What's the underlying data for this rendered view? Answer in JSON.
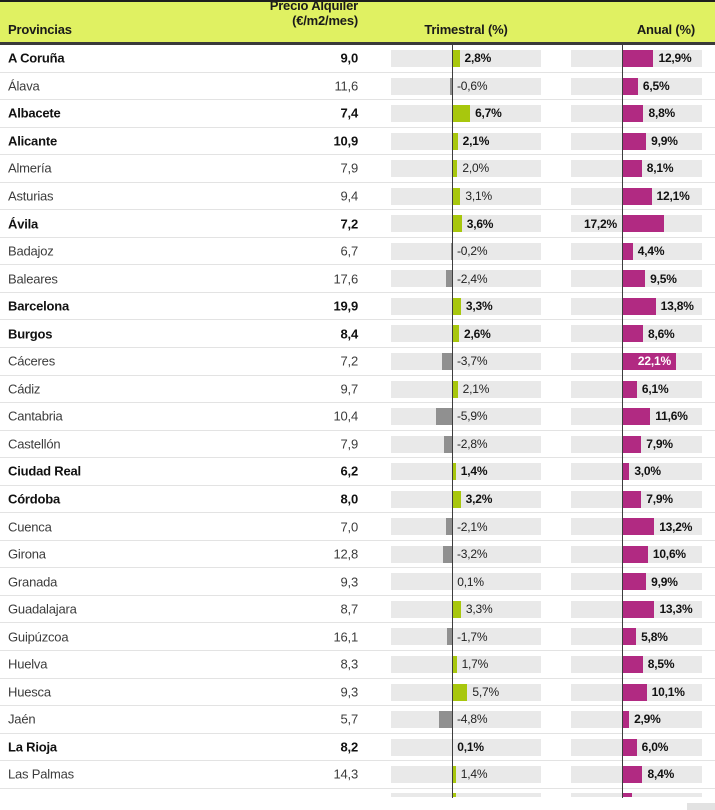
{
  "header": {
    "provincias": "Provincias",
    "precio_line1": "Precio Alquiler",
    "precio_line2": "(€/m2/mes)",
    "trimestral": "Trimestral (%)",
    "anual": "Anual (%)"
  },
  "colors": {
    "header_bg": "#e0f162",
    "positive_quarter_bar": "#a8c70d",
    "negative_quarter_bar": "#909090",
    "annual_bar": "#b12a82",
    "bar_track": "#e9e9e9",
    "axis_line": "#3d3d3d"
  },
  "rows": [
    {
      "name": "A Coruña",
      "bold": true,
      "price": "9,0",
      "trimestral": 2.8,
      "trimestral_label": "2,8%",
      "anual": 12.9,
      "anual_label": "12,9%",
      "anual_label_pos": "right"
    },
    {
      "name": "Álava",
      "bold": false,
      "price": "11,6",
      "trimestral": -0.6,
      "trimestral_label": "-0,6%",
      "anual": 6.5,
      "anual_label": "6,5%",
      "anual_label_pos": "right"
    },
    {
      "name": "Albacete",
      "bold": true,
      "price": "7,4",
      "trimestral": 6.7,
      "trimestral_label": "6,7%",
      "anual": 8.8,
      "anual_label": "8,8%",
      "anual_label_pos": "right"
    },
    {
      "name": "Alicante",
      "bold": true,
      "price": "10,9",
      "trimestral": 2.1,
      "trimestral_label": "2,1%",
      "anual": 9.9,
      "anual_label": "9,9%",
      "anual_label_pos": "right"
    },
    {
      "name": "Almería",
      "bold": false,
      "price": "7,9",
      "trimestral": 2.0,
      "trimestral_label": "2,0%",
      "anual": 8.1,
      "anual_label": "8,1%",
      "anual_label_pos": "right"
    },
    {
      "name": "Asturias",
      "bold": false,
      "price": "9,4",
      "trimestral": 3.1,
      "trimestral_label": "3,1%",
      "anual": 12.1,
      "anual_label": "12,1%",
      "anual_label_pos": "right"
    },
    {
      "name": "Ávila",
      "bold": true,
      "price": "7,2",
      "trimestral": 3.6,
      "trimestral_label": "3,6%",
      "anual": 17.2,
      "anual_label": "17,2%",
      "anual_label_pos": "left"
    },
    {
      "name": "Badajoz",
      "bold": false,
      "price": "6,7",
      "trimestral": -0.2,
      "trimestral_label": "-0,2%",
      "anual": 4.4,
      "anual_label": "4,4%",
      "anual_label_pos": "right"
    },
    {
      "name": "Baleares",
      "bold": false,
      "price": "17,6",
      "trimestral": -2.4,
      "trimestral_label": "-2,4%",
      "anual": 9.5,
      "anual_label": "9,5%",
      "anual_label_pos": "right"
    },
    {
      "name": "Barcelona",
      "bold": true,
      "price": "19,9",
      "trimestral": 3.3,
      "trimestral_label": "3,3%",
      "anual": 13.8,
      "anual_label": "13,8%",
      "anual_label_pos": "right"
    },
    {
      "name": "Burgos",
      "bold": true,
      "price": "8,4",
      "trimestral": 2.6,
      "trimestral_label": "2,6%",
      "anual": 8.6,
      "anual_label": "8,6%",
      "anual_label_pos": "right"
    },
    {
      "name": "Cáceres",
      "bold": false,
      "price": "7,2",
      "trimestral": -3.7,
      "trimestral_label": "-3,7%",
      "anual": 22.1,
      "anual_label": "22,1%",
      "anual_label_pos": "inside"
    },
    {
      "name": "Cádiz",
      "bold": false,
      "price": "9,7",
      "trimestral": 2.1,
      "trimestral_label": "2,1%",
      "anual": 6.1,
      "anual_label": "6,1%",
      "anual_label_pos": "right"
    },
    {
      "name": "Cantabria",
      "bold": false,
      "price": "10,4",
      "trimestral": -5.9,
      "trimestral_label": "-5,9%",
      "anual": 11.6,
      "anual_label": "11,6%",
      "anual_label_pos": "right"
    },
    {
      "name": "Castellón",
      "bold": false,
      "price": "7,9",
      "trimestral": -2.8,
      "trimestral_label": "-2,8%",
      "anual": 7.9,
      "anual_label": "7,9%",
      "anual_label_pos": "right"
    },
    {
      "name": "Ciudad Real",
      "bold": true,
      "price": "6,2",
      "trimestral": 1.4,
      "trimestral_label": "1,4%",
      "anual": 3.0,
      "anual_label": "3,0%",
      "anual_label_pos": "right"
    },
    {
      "name": "Córdoba",
      "bold": true,
      "price": "8,0",
      "trimestral": 3.2,
      "trimestral_label": "3,2%",
      "anual": 7.9,
      "anual_label": "7,9%",
      "anual_label_pos": "right"
    },
    {
      "name": "Cuenca",
      "bold": false,
      "price": "7,0",
      "trimestral": -2.1,
      "trimestral_label": "-2,1%",
      "anual": 13.2,
      "anual_label": "13,2%",
      "anual_label_pos": "right"
    },
    {
      "name": "Girona",
      "bold": false,
      "price": "12,8",
      "trimestral": -3.2,
      "trimestral_label": "-3,2%",
      "anual": 10.6,
      "anual_label": "10,6%",
      "anual_label_pos": "right"
    },
    {
      "name": "Granada",
      "bold": false,
      "price": "9,3",
      "trimestral": 0.1,
      "trimestral_label": "0,1%",
      "anual": 9.9,
      "anual_label": "9,9%",
      "anual_label_pos": "right"
    },
    {
      "name": "Guadalajara",
      "bold": false,
      "price": "8,7",
      "trimestral": 3.3,
      "trimestral_label": "3,3%",
      "anual": 13.3,
      "anual_label": "13,3%",
      "anual_label_pos": "right"
    },
    {
      "name": "Guipúzcoa",
      "bold": false,
      "price": "16,1",
      "trimestral": -1.7,
      "trimestral_label": "-1,7%",
      "anual": 5.8,
      "anual_label": "5,8%",
      "anual_label_pos": "right"
    },
    {
      "name": "Huelva",
      "bold": false,
      "price": "8,3",
      "trimestral": 1.7,
      "trimestral_label": "1,7%",
      "anual": 8.5,
      "anual_label": "8,5%",
      "anual_label_pos": "right"
    },
    {
      "name": "Huesca",
      "bold": false,
      "price": "9,3",
      "trimestral": 5.7,
      "trimestral_label": "5,7%",
      "anual": 10.1,
      "anual_label": "10,1%",
      "anual_label_pos": "right"
    },
    {
      "name": "Jaén",
      "bold": false,
      "price": "5,7",
      "trimestral": -4.8,
      "trimestral_label": "-4,8%",
      "anual": 2.9,
      "anual_label": "2,9%",
      "anual_label_pos": "right"
    },
    {
      "name": "La Rioja",
      "bold": true,
      "price": "8,2",
      "trimestral": 0.1,
      "trimestral_label": "0,1%",
      "anual": 6.0,
      "anual_label": "6,0%",
      "anual_label_pos": "right"
    },
    {
      "name": "Las Palmas",
      "bold": false,
      "price": "14,3",
      "trimestral": 1.4,
      "trimestral_label": "1,4%",
      "anual": 8.4,
      "anual_label": "8,4%",
      "anual_label_pos": "right"
    }
  ],
  "chart_data": {
    "type": "table",
    "title": "",
    "columns": [
      "Provincias",
      "Precio Alquiler (€/m2/mes)",
      "Trimestral (%)",
      "Anual (%)"
    ],
    "categories": [
      "A Coruña",
      "Álava",
      "Albacete",
      "Alicante",
      "Almería",
      "Asturias",
      "Ávila",
      "Badajoz",
      "Baleares",
      "Barcelona",
      "Burgos",
      "Cáceres",
      "Cádiz",
      "Cantabria",
      "Castellón",
      "Ciudad Real",
      "Córdoba",
      "Cuenca",
      "Girona",
      "Granada",
      "Guadalajara",
      "Guipúzcoa",
      "Huelva",
      "Huesca",
      "Jaén",
      "La Rioja",
      "Las Palmas"
    ],
    "series": [
      {
        "name": "Precio Alquiler (€/m2/mes)",
        "type": "value",
        "values": [
          9.0,
          11.6,
          7.4,
          10.9,
          7.9,
          9.4,
          7.2,
          6.7,
          17.6,
          19.9,
          8.4,
          7.2,
          9.7,
          10.4,
          7.9,
          6.2,
          8.0,
          7.0,
          12.8,
          9.3,
          8.7,
          16.1,
          8.3,
          9.3,
          5.7,
          8.2,
          14.3
        ]
      },
      {
        "name": "Trimestral (%)",
        "type": "bar",
        "values": [
          2.8,
          -0.6,
          6.7,
          2.1,
          2.0,
          3.1,
          3.6,
          -0.2,
          -2.4,
          3.3,
          2.6,
          -3.7,
          2.1,
          -5.9,
          -2.8,
          1.4,
          3.2,
          -2.1,
          -3.2,
          0.1,
          3.3,
          -1.7,
          1.7,
          5.7,
          -4.8,
          0.1,
          1.4
        ]
      },
      {
        "name": "Anual (%)",
        "type": "bar",
        "values": [
          12.9,
          6.5,
          8.8,
          9.9,
          8.1,
          12.1,
          17.2,
          4.4,
          9.5,
          13.8,
          8.6,
          22.1,
          6.1,
          11.6,
          7.9,
          3.0,
          7.9,
          13.2,
          10.6,
          9.9,
          13.3,
          5.8,
          8.5,
          10.1,
          2.9,
          6.0,
          8.4
        ]
      }
    ],
    "legend": "none",
    "grid": false,
    "bar_baseline": 0,
    "highlighted_bold_rows": [
      "A Coruña",
      "Albacete",
      "Alicante",
      "Ávila",
      "Barcelona",
      "Burgos",
      "Ciudad Real",
      "Córdoba",
      "La Rioja"
    ]
  }
}
